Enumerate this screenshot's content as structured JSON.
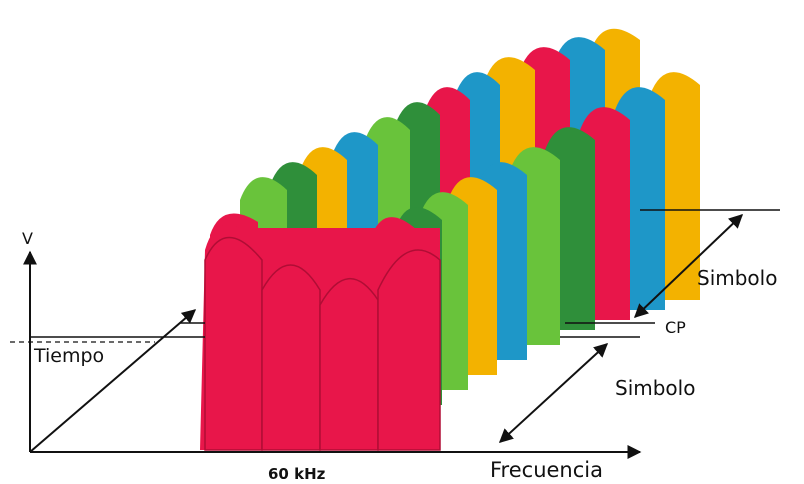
{
  "labels": {
    "v_axis": "V",
    "time_axis": "Tiempo",
    "freq_axis": "Frecuencia",
    "bandwidth": "60 kHz",
    "symbol_back": "Simbolo",
    "symbol_front": "Simbolo",
    "cyclic_prefix": "CP"
  },
  "colors": {
    "red": "#e8164a",
    "red_dark": "#b00d35",
    "dark_green": "#2f8f3a",
    "light_green": "#69c33b",
    "blue": "#1e97c8",
    "yellow": "#f3b200",
    "axis": "#111111"
  },
  "subcarrier_color_order": [
    "red",
    "dark_green",
    "light_green",
    "yellow",
    "blue"
  ]
}
